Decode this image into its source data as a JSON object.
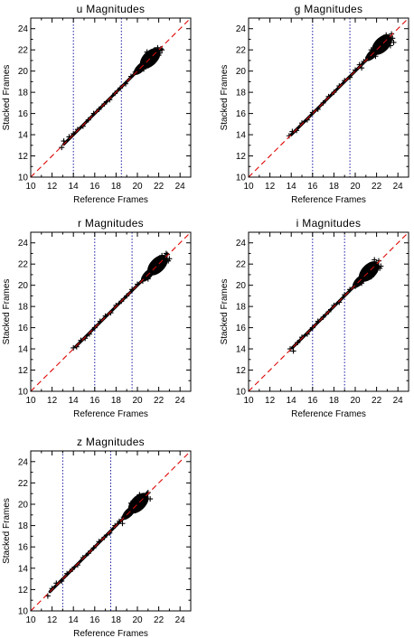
{
  "chart_data": [
    {
      "type": "scatter",
      "title": "u Magnitudes",
      "xlabel": "Reference Frames",
      "ylabel": "Stacked Frames",
      "xlim": [
        10,
        25
      ],
      "ylim": [
        10,
        25
      ],
      "xticks": [
        "10",
        "12",
        "14",
        "16",
        "18",
        "20",
        "22",
        "24"
      ],
      "yticks": [
        "10",
        "12",
        "14",
        "16",
        "18",
        "20",
        "22",
        "24"
      ],
      "identity_line": true,
      "vlines": [
        14,
        18.5
      ],
      "series": [
        {
          "marker": "+",
          "x": [
            12.9,
            13.1,
            13.6,
            14.0,
            14.4,
            14.9,
            15.4,
            15.9,
            16.4,
            16.9,
            17.4,
            17.9,
            18.4,
            18.9,
            19.4,
            19.8,
            20.2,
            20.5,
            20.8,
            21.1,
            21.3,
            21.5,
            21.7,
            21.9,
            22.1,
            22.3,
            20.6,
            21.0,
            21.4,
            21.8,
            22.2,
            20.9,
            21.6,
            22.0
          ],
          "y": [
            12.8,
            13.4,
            13.8,
            14.1,
            14.5,
            14.8,
            15.4,
            16.0,
            16.4,
            16.9,
            17.3,
            17.9,
            18.4,
            18.8,
            19.5,
            19.9,
            20.4,
            20.7,
            21.2,
            21.5,
            21.1,
            21.9,
            21.4,
            22.2,
            21.7,
            22.0,
            20.2,
            20.5,
            21.7,
            21.8,
            22.1,
            21.8,
            22.0,
            21.5
          ]
        }
      ]
    },
    {
      "type": "scatter",
      "title": "g Magnitudes",
      "xlabel": "Reference Frames",
      "ylabel": "Stacked Frames",
      "xlim": [
        10,
        25
      ],
      "ylim": [
        10,
        25
      ],
      "xticks": [
        "10",
        "12",
        "14",
        "16",
        "18",
        "20",
        "22",
        "24"
      ],
      "yticks": [
        "10",
        "12",
        "14",
        "16",
        "18",
        "20",
        "22",
        "24"
      ],
      "identity_line": true,
      "vlines": [
        16,
        19.5
      ],
      "series": [
        {
          "marker": "+",
          "x": [
            13.8,
            14.1,
            14.5,
            15.0,
            15.5,
            16.0,
            16.5,
            17.0,
            17.5,
            18.0,
            18.5,
            19.0,
            19.5,
            20.0,
            20.4,
            20.8,
            21.2,
            21.6,
            22.0,
            22.4,
            22.8,
            23.1,
            23.4,
            23.6,
            21.5,
            22.2,
            22.9,
            23.3,
            20.6,
            21.9,
            22.6,
            23.5
          ],
          "y": [
            13.9,
            14.3,
            14.4,
            15.1,
            15.4,
            16.1,
            16.4,
            17.0,
            17.6,
            18.0,
            18.6,
            19.1,
            19.4,
            20.1,
            20.6,
            20.9,
            21.3,
            21.8,
            22.2,
            22.6,
            23.0,
            23.2,
            23.5,
            22.7,
            22.0,
            22.8,
            23.4,
            22.4,
            20.3,
            21.4,
            22.3,
            23.1
          ]
        }
      ]
    },
    {
      "type": "scatter",
      "title": "r Magnitudes",
      "xlabel": "Reference Frames",
      "ylabel": "Stacked Frames",
      "xlim": [
        10,
        25
      ],
      "ylim": [
        10,
        25
      ],
      "xticks": [
        "10",
        "12",
        "14",
        "16",
        "18",
        "20",
        "22",
        "24"
      ],
      "yticks": [
        "10",
        "12",
        "14",
        "16",
        "18",
        "20",
        "22",
        "24"
      ],
      "identity_line": true,
      "vlines": [
        16,
        19.5
      ],
      "series": [
        {
          "marker": "+",
          "x": [
            14.0,
            14.3,
            14.7,
            15.1,
            15.5,
            16.0,
            16.5,
            17.0,
            17.5,
            18.0,
            18.5,
            19.0,
            19.5,
            20.0,
            20.5,
            20.9,
            21.3,
            21.7,
            22.1,
            22.5,
            22.8,
            23.0,
            21.6,
            22.3,
            22.9,
            21.0,
            22.0,
            22.7
          ],
          "y": [
            14.1,
            14.2,
            14.8,
            15.0,
            15.4,
            16.0,
            16.6,
            17.1,
            17.4,
            18.1,
            18.5,
            19.0,
            19.6,
            20.1,
            20.4,
            21.0,
            21.4,
            21.8,
            22.2,
            22.6,
            22.9,
            22.5,
            22.1,
            22.8,
            22.3,
            20.6,
            21.7,
            23.0
          ]
        }
      ]
    },
    {
      "type": "scatter",
      "title": "i Magnitudes",
      "xlabel": "Reference Frames",
      "ylabel": "Stacked Frames",
      "xlim": [
        10,
        25
      ],
      "ylim": [
        10,
        25
      ],
      "xticks": [
        "10",
        "12",
        "14",
        "16",
        "18",
        "20",
        "22",
        "24"
      ],
      "yticks": [
        "10",
        "12",
        "14",
        "16",
        "18",
        "20",
        "22",
        "24"
      ],
      "identity_line": true,
      "vlines": [
        16,
        19
      ],
      "series": [
        {
          "marker": "+",
          "x": [
            13.9,
            14.2,
            14.6,
            15.0,
            15.5,
            16.0,
            16.5,
            17.0,
            17.5,
            18.0,
            18.5,
            19.0,
            19.5,
            20.0,
            20.4,
            20.8,
            21.2,
            21.6,
            21.9,
            22.2,
            22.4,
            21.0,
            21.8,
            22.3,
            20.6,
            21.5
          ],
          "y": [
            14.0,
            13.8,
            14.6,
            15.1,
            15.4,
            16.0,
            16.6,
            17.0,
            17.5,
            18.1,
            18.4,
            19.1,
            19.6,
            19.9,
            20.5,
            20.9,
            21.3,
            21.7,
            22.0,
            22.3,
            21.8,
            21.4,
            22.4,
            21.6,
            20.2,
            20.8
          ]
        }
      ]
    },
    {
      "type": "scatter",
      "title": "z Magnitudes",
      "xlabel": "Reference Frames",
      "ylabel": "Stacked Frames",
      "xlim": [
        10,
        25
      ],
      "ylim": [
        10,
        25
      ],
      "xticks": [
        "10",
        "12",
        "14",
        "16",
        "18",
        "20",
        "22",
        "24"
      ],
      "yticks": [
        "10",
        "12",
        "14",
        "16",
        "18",
        "20",
        "22",
        "24"
      ],
      "identity_line": true,
      "vlines": [
        13,
        17.5
      ],
      "series": [
        {
          "marker": "+",
          "x": [
            11.6,
            12.0,
            12.4,
            12.9,
            13.4,
            13.9,
            14.4,
            14.9,
            15.4,
            15.9,
            16.4,
            16.9,
            17.4,
            17.9,
            18.3,
            18.7,
            19.1,
            19.5,
            19.9,
            20.3,
            20.7,
            21.0,
            21.2,
            19.4,
            20.2,
            20.9,
            18.6,
            19.8
          ],
          "y": [
            11.4,
            12.1,
            12.6,
            12.8,
            13.5,
            13.9,
            14.3,
            15.0,
            15.4,
            15.9,
            16.5,
            16.9,
            17.3,
            18.0,
            18.4,
            18.8,
            19.2,
            19.6,
            20.0,
            20.4,
            20.8,
            21.1,
            20.5,
            20.1,
            20.9,
            21.0,
            18.2,
            19.4
          ]
        }
      ]
    }
  ]
}
